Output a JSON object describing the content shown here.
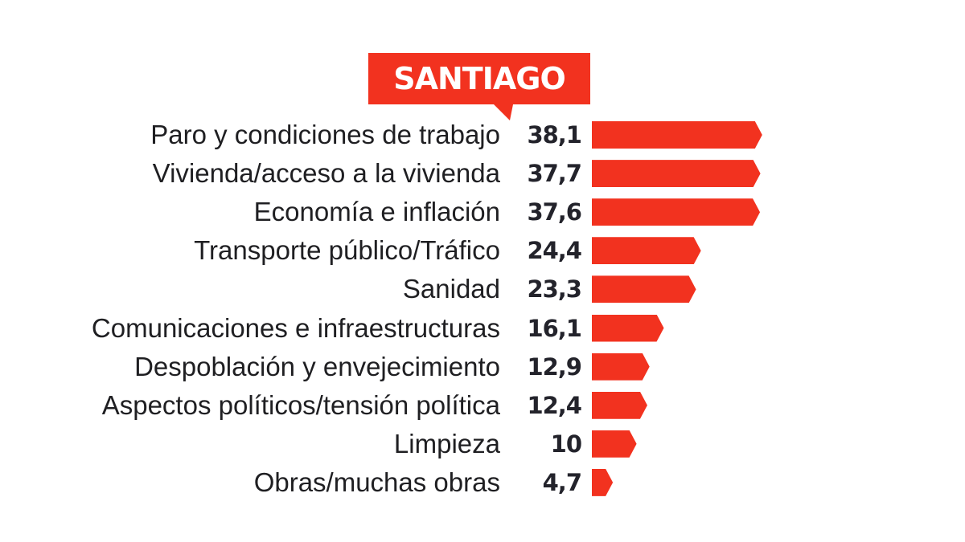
{
  "chart_data": {
    "type": "bar",
    "orientation": "horizontal",
    "title": "SANTIAGO",
    "categories": [
      "Paro y condiciones de trabajo",
      "Vivienda/acceso a la vivienda",
      "Economía e inflación",
      "Transporte público/Tráfico",
      "Sanidad",
      "Comunicaciones e infraestructuras",
      "Despoblación y envejecimiento",
      "Aspectos políticos/tensión política",
      "Limpieza",
      "Obras/muchas obras"
    ],
    "values": [
      38.1,
      37.7,
      37.6,
      24.4,
      23.3,
      16.1,
      12.9,
      12.4,
      10,
      4.7
    ],
    "value_labels": [
      "38,1",
      "37,7",
      "37,6",
      "24,4",
      "23,3",
      "16,1",
      "12,9",
      "12,4",
      "10",
      "4,7"
    ],
    "xlabel": "",
    "ylabel": "",
    "grid": false,
    "colors": {
      "bar": "#f2321f",
      "title_bg": "#f2321f",
      "text": "#1f1f22"
    }
  }
}
